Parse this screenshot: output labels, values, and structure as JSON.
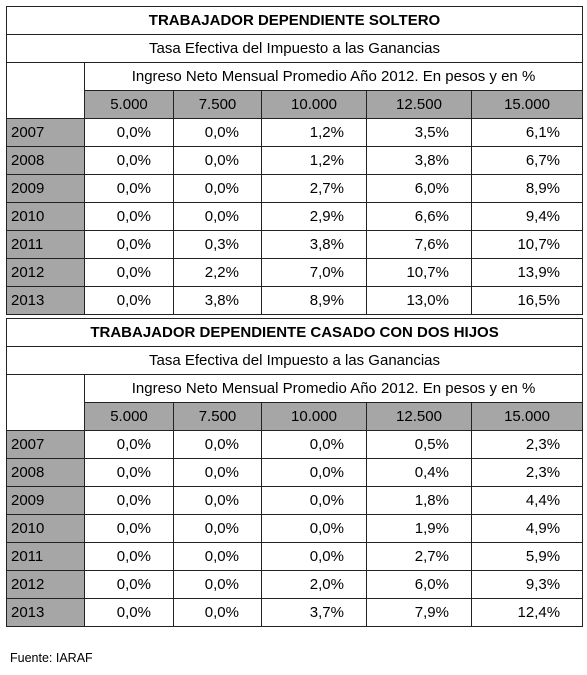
{
  "tables": [
    {
      "title": "TRABAJADOR DEPENDIENTE SOLTERO",
      "subtitle": "Tasa Efectiva del Impuesto a las Ganancias",
      "caption": "Ingreso Neto Mensual Promedio Año 2012. En pesos y en %",
      "columns": [
        "5.000",
        "7.500",
        "10.000",
        "12.500",
        "15.000"
      ],
      "rows": [
        {
          "year": "2007",
          "values": [
            "0,0%",
            "0,0%",
            "1,2%",
            "3,5%",
            "6,1%"
          ]
        },
        {
          "year": "2008",
          "values": [
            "0,0%",
            "0,0%",
            "1,2%",
            "3,8%",
            "6,7%"
          ]
        },
        {
          "year": "2009",
          "values": [
            "0,0%",
            "0,0%",
            "2,7%",
            "6,0%",
            "8,9%"
          ]
        },
        {
          "year": "2010",
          "values": [
            "0,0%",
            "0,0%",
            "2,9%",
            "6,6%",
            "9,4%"
          ]
        },
        {
          "year": "2011",
          "values": [
            "0,0%",
            "0,3%",
            "3,8%",
            "7,6%",
            "10,7%"
          ]
        },
        {
          "year": "2012",
          "values": [
            "0,0%",
            "2,2%",
            "7,0%",
            "10,7%",
            "13,9%"
          ]
        },
        {
          "year": "2013",
          "values": [
            "0,0%",
            "3,8%",
            "8,9%",
            "13,0%",
            "16,5%"
          ]
        }
      ]
    },
    {
      "title": "TRABAJADOR DEPENDIENTE CASADO CON DOS HIJOS",
      "subtitle": "Tasa Efectiva del Impuesto a las Ganancias",
      "caption": "Ingreso Neto Mensual Promedio Año 2012. En pesos y en %",
      "columns": [
        "5.000",
        "7.500",
        "10.000",
        "12.500",
        "15.000"
      ],
      "rows": [
        {
          "year": "2007",
          "values": [
            "0,0%",
            "0,0%",
            "0,0%",
            "0,5%",
            "2,3%"
          ]
        },
        {
          "year": "2008",
          "values": [
            "0,0%",
            "0,0%",
            "0,0%",
            "0,4%",
            "2,3%"
          ]
        },
        {
          "year": "2009",
          "values": [
            "0,0%",
            "0,0%",
            "0,0%",
            "1,8%",
            "4,4%"
          ]
        },
        {
          "year": "2010",
          "values": [
            "0,0%",
            "0,0%",
            "0,0%",
            "1,9%",
            "4,9%"
          ]
        },
        {
          "year": "2011",
          "values": [
            "0,0%",
            "0,0%",
            "0,0%",
            "2,7%",
            "5,9%"
          ]
        },
        {
          "year": "2012",
          "values": [
            "0,0%",
            "0,0%",
            "2,0%",
            "6,0%",
            "9,3%"
          ]
        },
        {
          "year": "2013",
          "values": [
            "0,0%",
            "0,0%",
            "3,7%",
            "7,9%",
            "12,4%"
          ]
        }
      ]
    }
  ],
  "source": "Fuente: IARAF",
  "colors": {
    "header_fill": "#a6a6a6",
    "border": "#222222"
  }
}
